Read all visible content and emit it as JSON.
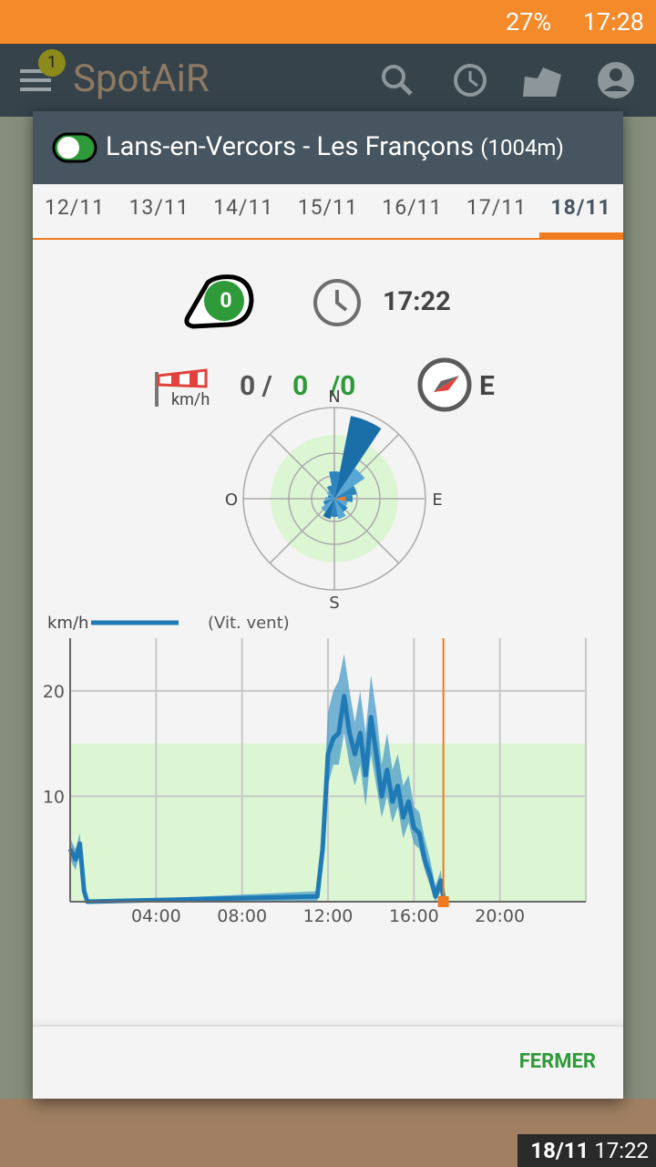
{
  "status_bar": {
    "battery": "27%",
    "time": "17:28"
  },
  "app_bar": {
    "badge": "1",
    "title": "SpotAiR"
  },
  "dialog": {
    "title": "Lans-en-Vercors - Les Françons",
    "altitude": "(1004m)",
    "tabs": [
      "12/11",
      "13/11",
      "14/11",
      "15/11",
      "16/11",
      "17/11",
      "18/11"
    ],
    "selected_tab": 6,
    "status_badge": "0",
    "time": "17:22",
    "wind_unit": "km/h",
    "wind_min": "0 /",
    "wind_avg": "0",
    "wind_max": "/0",
    "direction": "E",
    "close_button": "FERMER"
  },
  "chart_data": [
    {
      "type": "line",
      "y_label": "km/h",
      "series_name": "(Vit. vent)",
      "color": "#1f7ab5",
      "spread_color": "#4b9cc8",
      "zone": [
        0,
        15
      ],
      "zone_color": "#dcf6d4",
      "now": 17.37,
      "now_color": "#f07a1e",
      "x": [
        0,
        0.25,
        0.45,
        0.65,
        0.8,
        11.5,
        11.75,
        12,
        12.25,
        12.5,
        12.75,
        13,
        13.25,
        13.5,
        13.75,
        14,
        14.25,
        14.5,
        14.75,
        15,
        15.25,
        15.5,
        15.75,
        16,
        16.25,
        16.5,
        16.75,
        17,
        17.25,
        17.4
      ],
      "values": [
        5,
        4,
        5.5,
        1,
        0,
        0.5,
        5,
        14,
        15.5,
        16,
        19.5,
        16,
        14,
        16,
        12,
        17.5,
        14,
        10,
        12.5,
        9.5,
        11,
        8,
        9.5,
        7,
        6.5,
        4,
        2.5,
        0.5,
        2,
        0
      ],
      "spread": {
        "low": [
          4,
          3,
          4.5,
          0.5,
          0,
          0,
          3,
          11,
          13,
          13,
          16,
          13,
          11,
          13,
          9,
          14,
          11,
          8,
          10,
          7.5,
          9,
          6,
          7.5,
          5.5,
          5,
          3,
          1.5,
          0,
          1,
          0
        ],
        "high": [
          6,
          5,
          6.5,
          1.5,
          0,
          1,
          8,
          18,
          20,
          21,
          23.5,
          20,
          17,
          20,
          16,
          21.5,
          18,
          13,
          16,
          12.5,
          14,
          11,
          12,
          9,
          8.5,
          6,
          4,
          1.5,
          3,
          0
        ]
      },
      "xlim": [
        0,
        24
      ],
      "ylim": [
        0,
        25
      ],
      "xticks": [
        {
          "value": 4,
          "label": "04:00"
        },
        {
          "value": 8,
          "label": "08:00"
        },
        {
          "value": 12,
          "label": "12:00"
        },
        {
          "value": 16,
          "label": "16:00"
        },
        {
          "value": 20,
          "label": "20:00"
        }
      ],
      "yticks": [
        10,
        20
      ],
      "grid": true
    },
    {
      "type": "rose",
      "categories": [
        "N",
        null,
        null,
        null,
        "E",
        null,
        null,
        null,
        "S",
        null,
        null,
        null,
        "O",
        null,
        null,
        null
      ],
      "values": [
        1.2,
        3.7,
        1.6,
        1.0,
        0.8,
        0.6,
        0.7,
        0.9,
        0.8,
        0.9,
        0.7,
        0.5,
        0.4,
        0.3,
        0.4,
        0.6
      ],
      "colors": [
        "#2d84bf",
        "#1b6fa8",
        "#5aa6d4",
        "#2d84bf",
        "#2d84bf",
        "#5aa6d4",
        "#2d84bf",
        "#5aa6d4",
        "#2d84bf",
        "#1b6fa8",
        "#5aa6d4",
        "#2d84bf",
        "#5aa6d4",
        "#2d84bf",
        "#5aa6d4",
        "#2d84bf"
      ],
      "highlight": {
        "index": 4,
        "value": 0.5,
        "color": "#f07a1e"
      },
      "zone": [
        0,
        2.8
      ],
      "zone_color": "#dcf6d4",
      "rlim": [
        0,
        4
      ],
      "rticks": [
        1,
        2,
        4
      ]
    }
  ]
}
